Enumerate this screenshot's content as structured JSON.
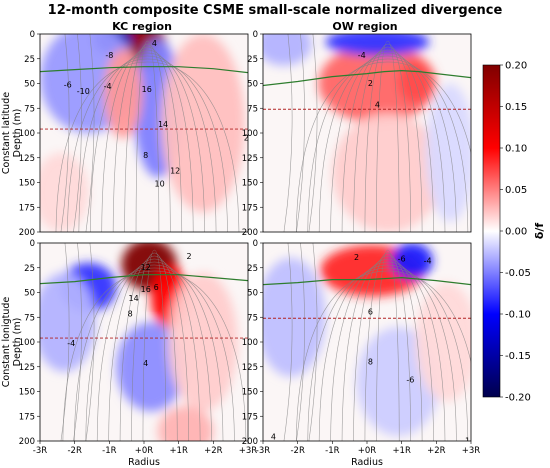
{
  "chart_data": {
    "type": "heatmap",
    "title": "12-month composite CSME small-scale normalized divergence",
    "panel_titles": [
      "KC region",
      "OW region"
    ],
    "row_labels": [
      "Constant latitude\nDepth (m)",
      "Constant lonigtude\nDepth (m)"
    ],
    "xlabel": "Radius",
    "x_ticks": [
      "-3R",
      "-2R",
      "-1R",
      "+0R",
      "+1R",
      "+2R",
      "+3R"
    ],
    "x_range": [
      -3,
      3
    ],
    "y_ticks": [
      0,
      25,
      50,
      75,
      100,
      125,
      150,
      175,
      200
    ],
    "y_range": [
      0,
      200
    ],
    "y_inverted": true,
    "colorbar": {
      "label": "δ/f",
      "ticks": [
        0.2,
        0.15,
        0.1,
        0.05,
        0.0,
        -0.05,
        -0.1,
        -0.15,
        -0.2
      ],
      "range": [
        -0.2,
        0.2
      ],
      "colormap": "seismic",
      "low_color": "#00004c",
      "mid_color": "#ffffff",
      "high_color": "#800000"
    },
    "panels": [
      {
        "row": 0,
        "col": 0,
        "blobs": [
          {
            "x": -0.1,
            "y": 12,
            "rx": 0.75,
            "ry": 24,
            "value": 0.19
          },
          {
            "x": -0.9,
            "y": 6,
            "rx": 0.55,
            "ry": 14,
            "value": -0.14
          },
          {
            "x": -1.6,
            "y": 45,
            "rx": 1.4,
            "ry": 55,
            "value": -0.04
          },
          {
            "x": 0.4,
            "y": 75,
            "rx": 0.7,
            "ry": 70,
            "value": -0.05
          },
          {
            "x": -0.6,
            "y": 60,
            "rx": 0.55,
            "ry": 45,
            "value": 0.04
          },
          {
            "x": 1.7,
            "y": 90,
            "rx": 1.2,
            "ry": 90,
            "value": 0.025
          },
          {
            "x": -2.4,
            "y": 160,
            "rx": 0.8,
            "ry": 40,
            "value": 0.015
          }
        ],
        "green_line": [
          [
            -3,
            38
          ],
          [
            -2,
            36
          ],
          [
            -1,
            34
          ],
          [
            0,
            33
          ],
          [
            1,
            33
          ],
          [
            2,
            35
          ],
          [
            3,
            39
          ]
        ],
        "red_dashed_depth": 96,
        "contour_labels": [
          {
            "text": "-8",
            "x": -1.0,
            "y": 30,
            "color": "#2a3cc8"
          },
          {
            "text": "-6",
            "x": -2.2,
            "y": 75,
            "color": "#2a3cc8"
          },
          {
            "text": "-10",
            "x": -1.75,
            "y": 85,
            "color": "#2a3cc8"
          },
          {
            "text": "-4",
            "x": -1.05,
            "y": 77,
            "color": "#2a3cc8"
          },
          {
            "text": "4",
            "x": 0.3,
            "y": 12,
            "color": "#7a2020"
          },
          {
            "text": "16",
            "x": 0.08,
            "y": 82,
            "color": "#7a2020"
          },
          {
            "text": "14",
            "x": 0.55,
            "y": 135,
            "color": "#7a2020"
          },
          {
            "text": "8",
            "x": 0.05,
            "y": 182,
            "color": "#7a2020"
          },
          {
            "text": "12",
            "x": 0.9,
            "y": 205,
            "color": "#7a2020"
          },
          {
            "text": "10",
            "x": 0.45,
            "y": 225,
            "color": "#7a2020"
          },
          {
            "text": "2",
            "x": 2.95,
            "y": 155,
            "color": "#7a2020"
          }
        ]
      },
      {
        "row": 0,
        "col": 1,
        "blobs": [
          {
            "x": 0.3,
            "y": 50,
            "rx": 1.7,
            "ry": 40,
            "value": 0.06
          },
          {
            "x": 1.4,
            "y": 48,
            "rx": 0.5,
            "ry": 22,
            "value": 0.07
          },
          {
            "x": 0.3,
            "y": 8,
            "rx": 1.5,
            "ry": 14,
            "value": -0.08
          },
          {
            "x": -2.4,
            "y": 10,
            "rx": 0.8,
            "ry": 22,
            "value": -0.03
          },
          {
            "x": 0.6,
            "y": 140,
            "rx": 1.6,
            "ry": 60,
            "value": 0.02
          },
          {
            "x": 2.4,
            "y": 120,
            "rx": 0.7,
            "ry": 70,
            "value": -0.015
          }
        ],
        "green_line": [
          [
            -3,
            52
          ],
          [
            -2,
            48
          ],
          [
            -1,
            43
          ],
          [
            0,
            40
          ],
          [
            0.5,
            38
          ],
          [
            1,
            37
          ],
          [
            1.5,
            38
          ],
          [
            2,
            40
          ],
          [
            3,
            44
          ]
        ],
        "red_dashed_depth": 76,
        "contour_labels": [
          {
            "text": "-4",
            "x": -0.15,
            "y": 30,
            "color": "#2a3cc8"
          },
          {
            "text": "2",
            "x": 0.1,
            "y": 73,
            "color": "#7a2020"
          },
          {
            "text": "4",
            "x": 0.3,
            "y": 105,
            "color": "#7a2020"
          }
        ]
      },
      {
        "row": 1,
        "col": 0,
        "blobs": [
          {
            "x": 0.15,
            "y": 22,
            "rx": 0.8,
            "ry": 26,
            "value": 0.2
          },
          {
            "x": 0.75,
            "y": 55,
            "rx": 0.55,
            "ry": 32,
            "value": 0.1
          },
          {
            "x": -1.6,
            "y": 45,
            "rx": 0.8,
            "ry": 25,
            "value": -0.08
          },
          {
            "x": -2.3,
            "y": 80,
            "rx": 0.9,
            "ry": 50,
            "value": -0.03
          },
          {
            "x": 0.2,
            "y": 125,
            "rx": 1.0,
            "ry": 45,
            "value": -0.045
          },
          {
            "x": 1.7,
            "y": 100,
            "rx": 1.0,
            "ry": 70,
            "value": 0.02
          },
          {
            "x": 1.2,
            "y": 190,
            "rx": 0.8,
            "ry": 25,
            "value": 0.03
          }
        ],
        "green_line": [
          [
            -3,
            41
          ],
          [
            -2,
            39
          ],
          [
            -1,
            35
          ],
          [
            0,
            32
          ],
          [
            1,
            32
          ],
          [
            2,
            35
          ],
          [
            3,
            38
          ]
        ],
        "red_dashed_depth": 96,
        "contour_labels": [
          {
            "text": "2",
            "x": 1.3,
            "y": 18,
            "color": "#7a2020"
          },
          {
            "text": "12",
            "x": 0.05,
            "y": 35,
            "color": "#7a2020"
          },
          {
            "text": "16",
            "x": 0.05,
            "y": 68,
            "color": "#7a2020"
          },
          {
            "text": "14",
            "x": -0.3,
            "y": 82,
            "color": "#7a2020"
          },
          {
            "text": "6",
            "x": 0.35,
            "y": 65,
            "color": "#7a2020"
          },
          {
            "text": "8",
            "x": -0.4,
            "y": 105,
            "color": "#7a2020"
          },
          {
            "text": "-4",
            "x": -2.1,
            "y": 150,
            "color": "#2a3cc8"
          },
          {
            "text": "4",
            "x": 0.05,
            "y": 180,
            "color": "#7a2020"
          }
        ]
      },
      {
        "row": 1,
        "col": 1,
        "blobs": [
          {
            "x": 0.15,
            "y": 28,
            "rx": 1.5,
            "ry": 26,
            "value": 0.085
          },
          {
            "x": 1.3,
            "y": 18,
            "rx": 0.6,
            "ry": 18,
            "value": -0.09
          },
          {
            "x": -2.2,
            "y": 75,
            "rx": 1.0,
            "ry": 60,
            "value": -0.025
          },
          {
            "x": 0.9,
            "y": 140,
            "rx": 1.2,
            "ry": 55,
            "value": -0.02
          },
          {
            "x": 2.3,
            "y": 100,
            "rx": 0.9,
            "ry": 60,
            "value": 0.015
          }
        ],
        "green_line": [
          [
            -3,
            42
          ],
          [
            -2,
            40
          ],
          [
            -1,
            37
          ],
          [
            0,
            37
          ],
          [
            1,
            35
          ],
          [
            2,
            38
          ],
          [
            3,
            42
          ]
        ],
        "red_dashed_depth": 76,
        "contour_labels": [
          {
            "text": "2",
            "x": -0.3,
            "y": 20,
            "color": "#7a2020"
          },
          {
            "text": "-6",
            "x": 1.0,
            "y": 22,
            "color": "#2a3cc8"
          },
          {
            "text": "-4",
            "x": 1.75,
            "y": 25,
            "color": "#2a3cc8"
          },
          {
            "text": "6",
            "x": 0.1,
            "y": 102,
            "color": "#7a2020"
          },
          {
            "text": "8",
            "x": 0.1,
            "y": 178,
            "color": "#7a2020"
          },
          {
            "text": "-6",
            "x": 1.25,
            "y": 205,
            "color": "#2a3cc8"
          },
          {
            "text": "4",
            "x": -2.7,
            "y": 292,
            "color": "#7a2020"
          },
          {
            "text": "1",
            "x": 2.9,
            "y": 298,
            "color": "#2a3cc8"
          }
        ]
      }
    ]
  }
}
